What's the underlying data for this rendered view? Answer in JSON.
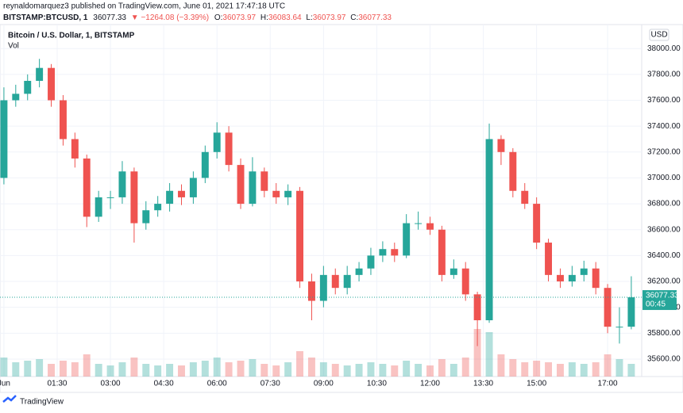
{
  "header": {
    "publisher": "reynaldomarquez3 published on TradingView.com, June 01, 2021 17:47:18 UTC",
    "symbol": "BITSTAMP:BTCUSD, 1",
    "last": "36077.33",
    "change": "▼ −1264.08 (−3.39%)",
    "o_label": "O:",
    "o": "36073.97",
    "h_label": "H:",
    "h": "36083.64",
    "l_label": "L:",
    "l": "36073.97",
    "c_label": "C:",
    "c": "36077.33"
  },
  "footer": {
    "logo": "TradingView"
  },
  "chart_data": {
    "type": "candlestick",
    "title": "Bitcoin / U.S. Dollar, 1, BITSTAMP",
    "volume_label": "Vol",
    "currency": "USD",
    "countdown": "00:45",
    "up_color": "#26a69a",
    "down_color": "#ef5350",
    "grid": true,
    "x": [
      0,
      0.333,
      0.667,
      1,
      1.333,
      1.667,
      2,
      2.333,
      2.667,
      3,
      3.333,
      3.667,
      4,
      4.333,
      4.667,
      5,
      5.333,
      5.667,
      6,
      6.333,
      6.667,
      7,
      7.333,
      7.667,
      8,
      8.333,
      8.667,
      9,
      9.333,
      9.667,
      10,
      10.333,
      10.667,
      11,
      11.333,
      11.667,
      12,
      12.333,
      12.667,
      13,
      13.333,
      13.667,
      14,
      14.333,
      14.667,
      15,
      15.333,
      15.667,
      16,
      16.333,
      16.667,
      17,
      17.333,
      17.667
    ],
    "open": [
      37000,
      37600,
      37650,
      37750,
      37850,
      37600,
      37300,
      37150,
      36700,
      36850,
      36850,
      37050,
      36650,
      36750,
      36800,
      36900,
      36850,
      37000,
      37200,
      37350,
      37100,
      36800,
      37050,
      36900,
      36850,
      36900,
      36200,
      36050,
      36250,
      36150,
      36250,
      36300,
      36400,
      36450,
      36400,
      36650,
      36650,
      36600,
      36250,
      36300,
      36100,
      35900,
      37300,
      37200,
      36900,
      36800,
      36500,
      36250,
      36200,
      36250,
      36300,
      36150,
      35850,
      35850
    ],
    "high": [
      37700,
      37720,
      37800,
      37920,
      37880,
      37640,
      37350,
      37180,
      36900,
      36900,
      37130,
      37080,
      36820,
      36860,
      36960,
      36950,
      37050,
      37250,
      37430,
      37400,
      37150,
      37160,
      37080,
      36960,
      36950,
      36930,
      36260,
      36320,
      36300,
      36320,
      36350,
      36460,
      36510,
      36500,
      36720,
      36740,
      36700,
      36630,
      36370,
      36350,
      36120,
      37420,
      37330,
      37230,
      36960,
      36850,
      36530,
      36300,
      36320,
      36360,
      36350,
      36180,
      36000,
      36240
    ],
    "low": [
      36950,
      37550,
      37600,
      37700,
      37550,
      37250,
      37080,
      36620,
      36660,
      36760,
      36800,
      36500,
      36600,
      36700,
      36740,
      36790,
      36800,
      36960,
      37150,
      37050,
      36760,
      36780,
      36850,
      36800,
      36790,
      36150,
      35900,
      36000,
      36100,
      36100,
      36200,
      36250,
      36350,
      36350,
      36380,
      36600,
      36560,
      36200,
      36220,
      36050,
      35700,
      35880,
      37100,
      36850,
      36760,
      36450,
      36200,
      36150,
      36160,
      36200,
      36100,
      35800,
      35720,
      35830
    ],
    "close": [
      37600,
      37650,
      37750,
      37850,
      37600,
      37300,
      37150,
      36700,
      36850,
      36850,
      37050,
      36650,
      36750,
      36800,
      36900,
      36850,
      37000,
      37200,
      37350,
      37100,
      36800,
      37050,
      36900,
      36850,
      36900,
      36200,
      36050,
      36250,
      36150,
      36250,
      36300,
      36400,
      36450,
      36400,
      36650,
      36650,
      36600,
      36250,
      36300,
      36100,
      35900,
      37300,
      37200,
      36900,
      36800,
      36500,
      36250,
      36200,
      36250,
      36300,
      36150,
      35850,
      35850,
      36077.33
    ],
    "volume": [
      60,
      45,
      50,
      55,
      40,
      50,
      45,
      70,
      40,
      35,
      45,
      60,
      40,
      35,
      40,
      35,
      45,
      50,
      60,
      45,
      50,
      55,
      40,
      35,
      45,
      80,
      60,
      45,
      40,
      35,
      40,
      45,
      40,
      35,
      50,
      40,
      35,
      55,
      40,
      60,
      150,
      140,
      70,
      55,
      45,
      50,
      45,
      40,
      45,
      40,
      45,
      70,
      55,
      40
    ],
    "xlim": [
      -0.11,
      17.96
    ],
    "xticks": [
      {
        "value": 0,
        "label": "Jun"
      },
      {
        "value": 1.5,
        "label": "01:30"
      },
      {
        "value": 3,
        "label": "03:00"
      },
      {
        "value": 4.5,
        "label": "04:30"
      },
      {
        "value": 6,
        "label": "06:00"
      },
      {
        "value": 7.5,
        "label": "07:30"
      },
      {
        "value": 9,
        "label": "09:00"
      },
      {
        "value": 10.5,
        "label": "10:30"
      },
      {
        "value": 12,
        "label": "12:00"
      },
      {
        "value": 13.5,
        "label": "13:30"
      },
      {
        "value": 15,
        "label": "15:00"
      },
      {
        "value": 17,
        "label": "17:00"
      }
    ],
    "ylim": [
      35465,
      38185
    ],
    "yticks": [
      {
        "value": 35600,
        "label": "35600.00"
      },
      {
        "value": 35800,
        "label": "35800.00"
      },
      {
        "value": 36000,
        "label": "36000.00"
      },
      {
        "value": 36200,
        "label": "36200.00"
      },
      {
        "value": 36400,
        "label": "36400.00"
      },
      {
        "value": 36600,
        "label": "36600.00"
      },
      {
        "value": 36800,
        "label": "36800.00"
      },
      {
        "value": 37000,
        "label": "37000.00"
      },
      {
        "value": 37200,
        "label": "37200.00"
      },
      {
        "value": 37400,
        "label": "37400.00"
      },
      {
        "value": 37600,
        "label": "37600.00"
      },
      {
        "value": 37800,
        "label": "37800.00"
      },
      {
        "value": 38000,
        "label": "38000.00"
      }
    ]
  }
}
